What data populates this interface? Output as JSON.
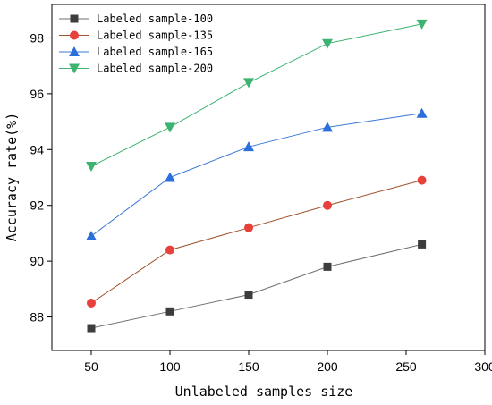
{
  "chart_data": {
    "type": "line",
    "title": "",
    "xlabel": "Unlabeled samples size",
    "ylabel": "Accuracy rate(%)",
    "xlim": [
      25,
      300
    ],
    "ylim": [
      86.8,
      99.2
    ],
    "xticks": [
      50,
      100,
      150,
      200,
      250,
      300
    ],
    "yticks": [
      88,
      90,
      92,
      94,
      96,
      98
    ],
    "grid": false,
    "legend_position": "top-left",
    "x": [
      50,
      100,
      150,
      200,
      260
    ],
    "series": [
      {
        "name": "Labeled sample-100",
        "color": "#3d3d3d",
        "line_color": "#6e6e6e",
        "marker": "square",
        "values": [
          87.6,
          88.2,
          88.8,
          89.8,
          90.6
        ]
      },
      {
        "name": "Labeled sample-135",
        "color": "#e8403a",
        "line_color": "#a0522d",
        "marker": "circle",
        "values": [
          88.5,
          90.4,
          91.2,
          92.0,
          92.9
        ]
      },
      {
        "name": "Labeled sample-165",
        "color": "#2a6fdb",
        "line_color": "#3a78d6",
        "marker": "triangle-up",
        "values": [
          90.9,
          93.0,
          94.1,
          94.8,
          95.3
        ]
      },
      {
        "name": "Labeled sample-200",
        "color": "#3cb371",
        "line_color": "#3cb371",
        "marker": "triangle-down",
        "values": [
          93.4,
          94.8,
          96.4,
          97.8,
          98.5
        ]
      }
    ]
  }
}
